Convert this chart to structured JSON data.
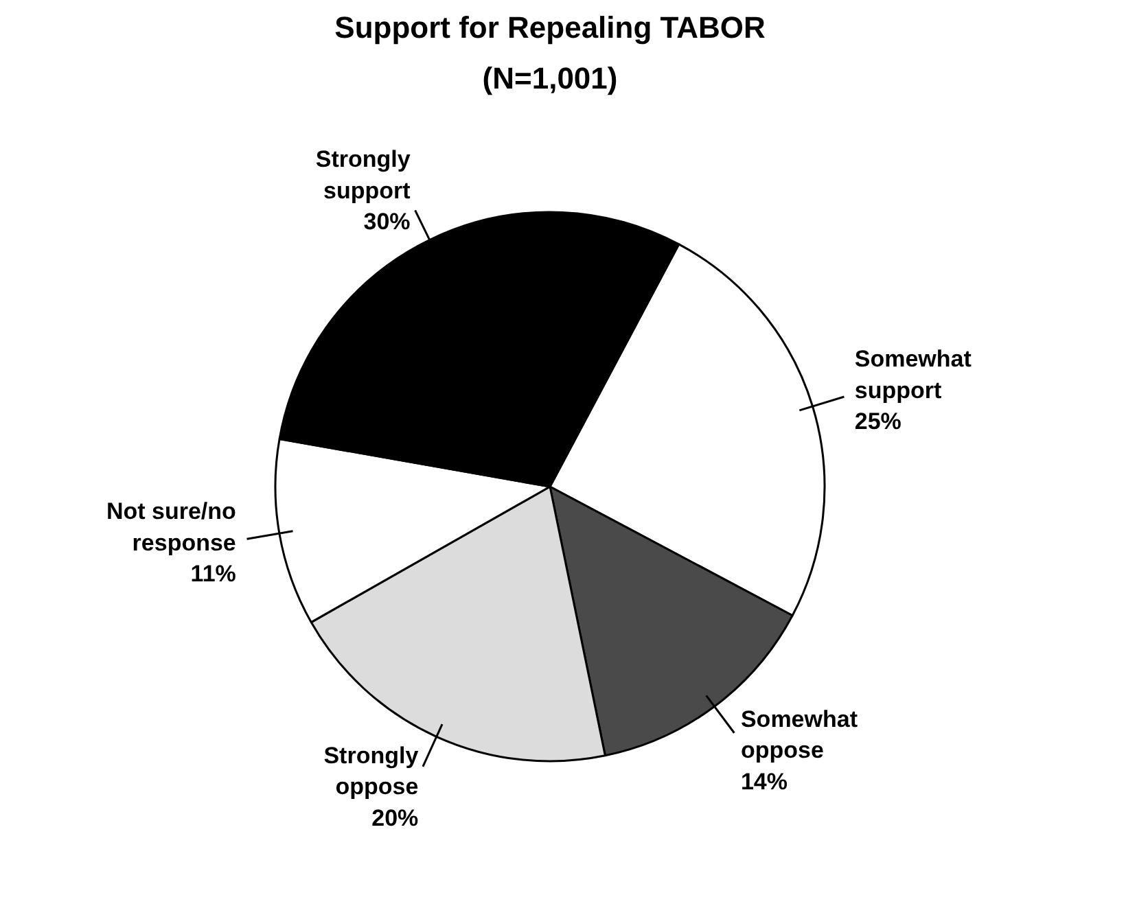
{
  "chart_data": {
    "type": "pie",
    "title": "Support for Repealing TABOR",
    "subtitle": "(N=1,001)",
    "categories": [
      "Somewhat support",
      "Somewhat oppose",
      "Strongly oppose",
      "Not sure/no response",
      "Strongly support"
    ],
    "values": [
      25,
      14,
      20,
      11,
      30
    ],
    "colors": [
      "#ffffff",
      "#4a4a4a",
      "#dcdcdc",
      "#ffffff",
      "#000000"
    ],
    "value_labels": [
      "25%",
      "14%",
      "20%",
      "11%",
      "30%"
    ]
  }
}
